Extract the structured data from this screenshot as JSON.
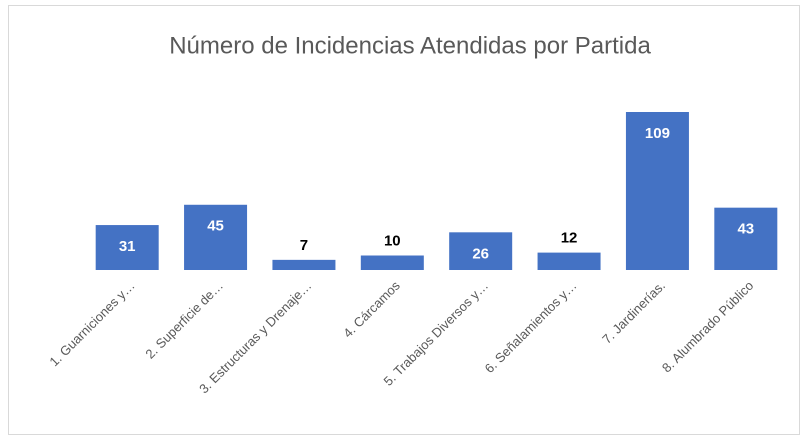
{
  "chart_data": {
    "type": "bar",
    "title": "Número de Incidencias Atendidas por Partida",
    "categories": [
      "1.  Guarniciones y…",
      "2. Superficie de…",
      "3. Estructuras y Drenaje…",
      "4. Cárcamos",
      "5. Trabajos Diversos y…",
      "6. Señalamientos y…",
      "7. Jardinerías.",
      "8. Alumbrado Público"
    ],
    "values": [
      31,
      45,
      7,
      10,
      26,
      12,
      109,
      43
    ],
    "color": "#4472c4"
  }
}
